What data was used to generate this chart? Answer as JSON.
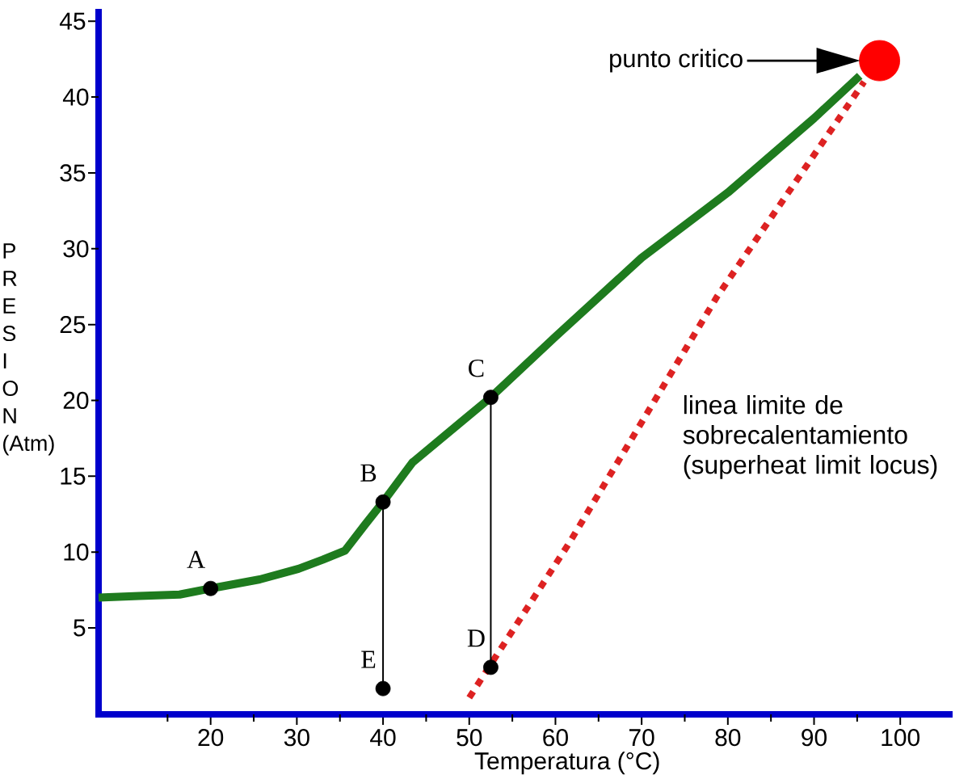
{
  "chart_data": {
    "type": "line",
    "xlabel": "Temperatura (°C)",
    "ylabel": "PRESION (Atm)",
    "xlim": [
      7,
      105.7
    ],
    "ylim": [
      -0.7,
      45.6
    ],
    "xticks": [
      {
        "value": 15,
        "label": null
      },
      20,
      {
        "value": 25,
        "label": null
      },
      30,
      {
        "value": 35,
        "label": null
      },
      40,
      {
        "value": 45,
        "label": null
      },
      50,
      {
        "value": 55,
        "label": null
      },
      60,
      {
        "value": 65,
        "label": null
      },
      70,
      {
        "value": 75,
        "label": null
      },
      80,
      {
        "value": 85,
        "label": null
      },
      90,
      {
        "value": 95,
        "label": null
      },
      100
    ],
    "yticks": [
      5,
      10,
      15,
      20,
      25,
      30,
      35,
      40,
      45
    ],
    "series": [
      {
        "color": "#1e7b1e",
        "line_style": "solid",
        "x": [
          7.0,
          11.7,
          16.4,
          20.0,
          25.7,
          30.2,
          33.0,
          35.6,
          37.9,
          40.0,
          43.4,
          48.9,
          52.5,
          60,
          70,
          80,
          90,
          95.3
        ],
        "values": [
          7.0,
          7.1,
          7.2,
          7.6,
          8.2,
          8.9,
          9.5,
          10.1,
          11.8,
          13.3,
          15.9,
          18.5,
          20.2,
          24.2,
          29.4,
          33.7,
          38.6,
          41.4
        ]
      },
      {
        "name": "linea limite de sobrecalentamiento (superheat limit locus)",
        "color": "#dd2222",
        "line_style": "dotted",
        "x": [
          50.0,
          61.6,
          78.7,
          95.8
        ],
        "values": [
          0.4,
          10.6,
          26.8,
          41.0
        ]
      },
      {
        "color": "#000000",
        "line_style": "solid",
        "x": [
          40.0,
          40.0
        ],
        "values": [
          13.3,
          1.0
        ]
      },
      {
        "color": "#000000",
        "line_style": "solid",
        "x": [
          52.5,
          52.5
        ],
        "values": [
          20.2,
          2.4
        ]
      },
      {
        "type": "scatter",
        "color": "#000000",
        "marker": "circle",
        "x": [
          20.0,
          40.0,
          52.5,
          52.5,
          40.0
        ],
        "values": [
          7.6,
          13.3,
          20.2,
          2.4,
          1.0
        ]
      },
      {
        "type": "scatter",
        "color": "#ff0000",
        "marker": "circle",
        "x": [
          97.6
        ],
        "values": [
          42.4
        ]
      }
    ],
    "annotations": [
      "punto critico",
      {
        "text": "A",
        "x": 20.0,
        "y": 7.6
      },
      {
        "text": "B",
        "x": 40.0,
        "y": 13.3
      },
      {
        "text": "C",
        "x": 52.5,
        "y": 20.2
      },
      {
        "text": "D",
        "x": 52.5,
        "y": 2.4
      },
      {
        "text": "E",
        "x": 40.0,
        "y": 1.0
      }
    ]
  }
}
